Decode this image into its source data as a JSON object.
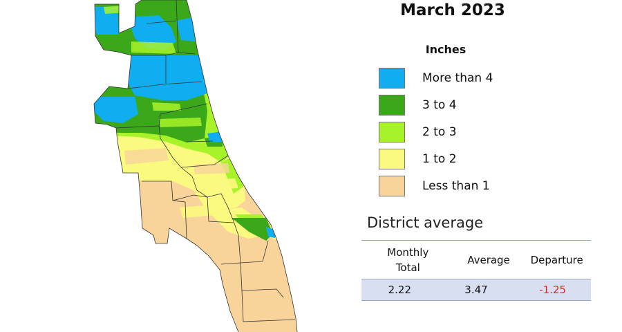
{
  "title": "March 2023",
  "legend": {
    "title": "Inches",
    "items": [
      {
        "label": "More than 4",
        "color": "#10aef0"
      },
      {
        "label": "3 to 4",
        "color": "#3aa818"
      },
      {
        "label": "2 to 3",
        "color": "#a8f22a"
      },
      {
        "label": "1 to 2",
        "color": "#fbfa80"
      },
      {
        "label": "Less than 1",
        "color": "#f8d49a"
      }
    ]
  },
  "district_average": {
    "heading": "District average",
    "columns": [
      "Monthly Total",
      "Average",
      "Departure"
    ],
    "values": [
      "2.22",
      "3.47",
      "-1.25"
    ],
    "departure_color": "#e02020"
  }
}
